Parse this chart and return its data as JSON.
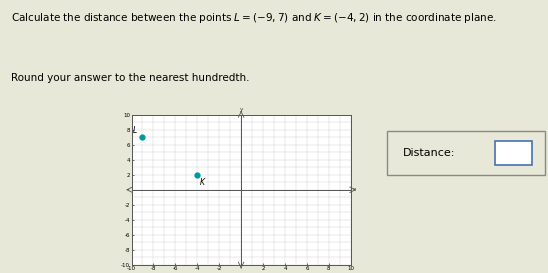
{
  "title_line1": "Calculate the distance between the points $L=(-9,7)$ and $K=(-4,2)$ in the coordinate plane.",
  "title_line2": "Round your answer to the nearest hundredth.",
  "point_L": [
    -9,
    7
  ],
  "point_K": [
    -4,
    2
  ],
  "point_L_label": "L",
  "point_K_label": "K",
  "point_color": "#009999",
  "xlim": [
    -10,
    10
  ],
  "ylim": [
    -10,
    10
  ],
  "grid_color": "#cccccc",
  "axis_color": "#555555",
  "bg_color": "#e8e8d8",
  "plot_bg": "#ffffff",
  "distance_label": "Distance:",
  "box_edge_color": "#4a6fb5",
  "box_outer_color": "#888888",
  "tick_step": 2,
  "title_fontsize": 7.5,
  "subtitle_fontsize": 7.5,
  "tick_fontsize": 4.0,
  "label_fontsize": 5.5
}
